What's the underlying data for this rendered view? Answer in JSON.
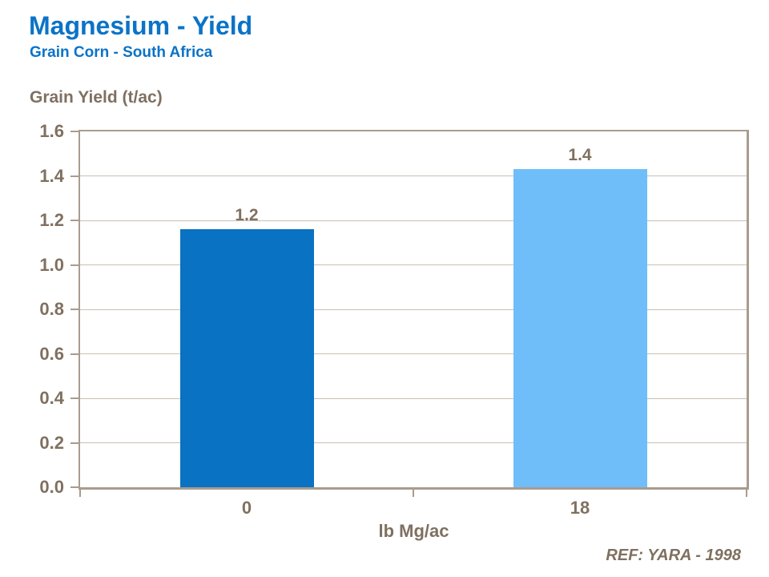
{
  "header": {
    "title": "Magnesium - Yield",
    "subtitle": "Grain Corn - South Africa"
  },
  "chart_data": {
    "type": "bar",
    "title": "Magnesium - Yield",
    "subtitle": "Grain Corn - South Africa",
    "ylabel": "Grain Yield (t/ac)",
    "xlabel": "lb Mg/ac",
    "categories": [
      "0",
      "18"
    ],
    "values": [
      1.16,
      1.43
    ],
    "data_labels": [
      "1.2",
      "1.4"
    ],
    "bar_colors": [
      "#0A72C2",
      "#6FBEF9"
    ],
    "ylim": [
      0,
      1.6
    ],
    "ytick_step": 0.2,
    "yticks": [
      "0.0",
      "0.2",
      "0.4",
      "0.6",
      "0.8",
      "1.0",
      "1.2",
      "1.4",
      "1.6"
    ],
    "grid": true,
    "legend": false
  },
  "footer": {
    "reference": "REF: YARA - 1998"
  },
  "colors": {
    "title_blue": "#0B73C7",
    "label_brown": "#7F7060",
    "axis_line": "#A89C8E",
    "gridline": "#C9C0B3",
    "bar_dark": "#0A72C2",
    "bar_light": "#6FBEF9"
  }
}
